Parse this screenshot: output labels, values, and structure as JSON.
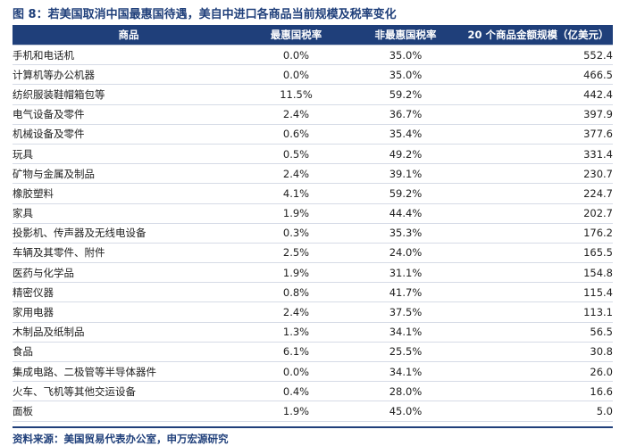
{
  "figure": {
    "title": "图 8：若美国取消中国最惠国待遇，美自中进口各商品当前规模及税率变化"
  },
  "table": {
    "headers": {
      "name": "商品",
      "mfn": "最惠国税率",
      "non_mfn": "非最惠国税率",
      "value": "20 个商品金额规模（亿美元）"
    },
    "rows": [
      {
        "name": "手机和电话机",
        "mfn": "0.0%",
        "non_mfn": "35.0%",
        "value": "552.4"
      },
      {
        "name": "计算机等办公机器",
        "mfn": "0.0%",
        "non_mfn": "35.0%",
        "value": "466.5"
      },
      {
        "name": "纺织服装鞋帽箱包等",
        "mfn": "11.5%",
        "non_mfn": "59.2%",
        "value": "442.4"
      },
      {
        "name": "电气设备及零件",
        "mfn": "2.4%",
        "non_mfn": "36.7%",
        "value": "397.9"
      },
      {
        "name": "机械设备及零件",
        "mfn": "0.6%",
        "non_mfn": "35.4%",
        "value": "377.6"
      },
      {
        "name": "玩具",
        "mfn": "0.5%",
        "non_mfn": "49.2%",
        "value": "331.4"
      },
      {
        "name": "矿物与金属及制品",
        "mfn": "2.4%",
        "non_mfn": "39.1%",
        "value": "230.7"
      },
      {
        "name": "橡胶塑料",
        "mfn": "4.1%",
        "non_mfn": "59.2%",
        "value": "224.7"
      },
      {
        "name": "家具",
        "mfn": "1.9%",
        "non_mfn": "44.4%",
        "value": "202.7"
      },
      {
        "name": "投影机、传声器及无线电设备",
        "mfn": "0.3%",
        "non_mfn": "35.3%",
        "value": "176.2"
      },
      {
        "name": "车辆及其零件、附件",
        "mfn": "2.5%",
        "non_mfn": "24.0%",
        "value": "165.5"
      },
      {
        "name": "医药与化学品",
        "mfn": "1.9%",
        "non_mfn": "31.1%",
        "value": "154.8"
      },
      {
        "name": "精密仪器",
        "mfn": "0.8%",
        "non_mfn": "41.7%",
        "value": "115.4"
      },
      {
        "name": "家用电器",
        "mfn": "2.4%",
        "non_mfn": "37.5%",
        "value": "113.1"
      },
      {
        "name": "木制品及纸制品",
        "mfn": "1.3%",
        "non_mfn": "34.1%",
        "value": "56.5"
      },
      {
        "name": "食品",
        "mfn": "6.1%",
        "non_mfn": "25.5%",
        "value": "30.8"
      },
      {
        "name": "集成电路、二极管等半导体器件",
        "mfn": "0.0%",
        "non_mfn": "34.1%",
        "value": "26.0"
      },
      {
        "name": "火车、飞机等其他交运设备",
        "mfn": "0.4%",
        "non_mfn": "28.0%",
        "value": "16.6"
      },
      {
        "name": "面板",
        "mfn": "1.9%",
        "non_mfn": "45.0%",
        "value": "5.0"
      }
    ]
  },
  "source": "资料来源：美国贸易代表办公室，申万宏源研究"
}
